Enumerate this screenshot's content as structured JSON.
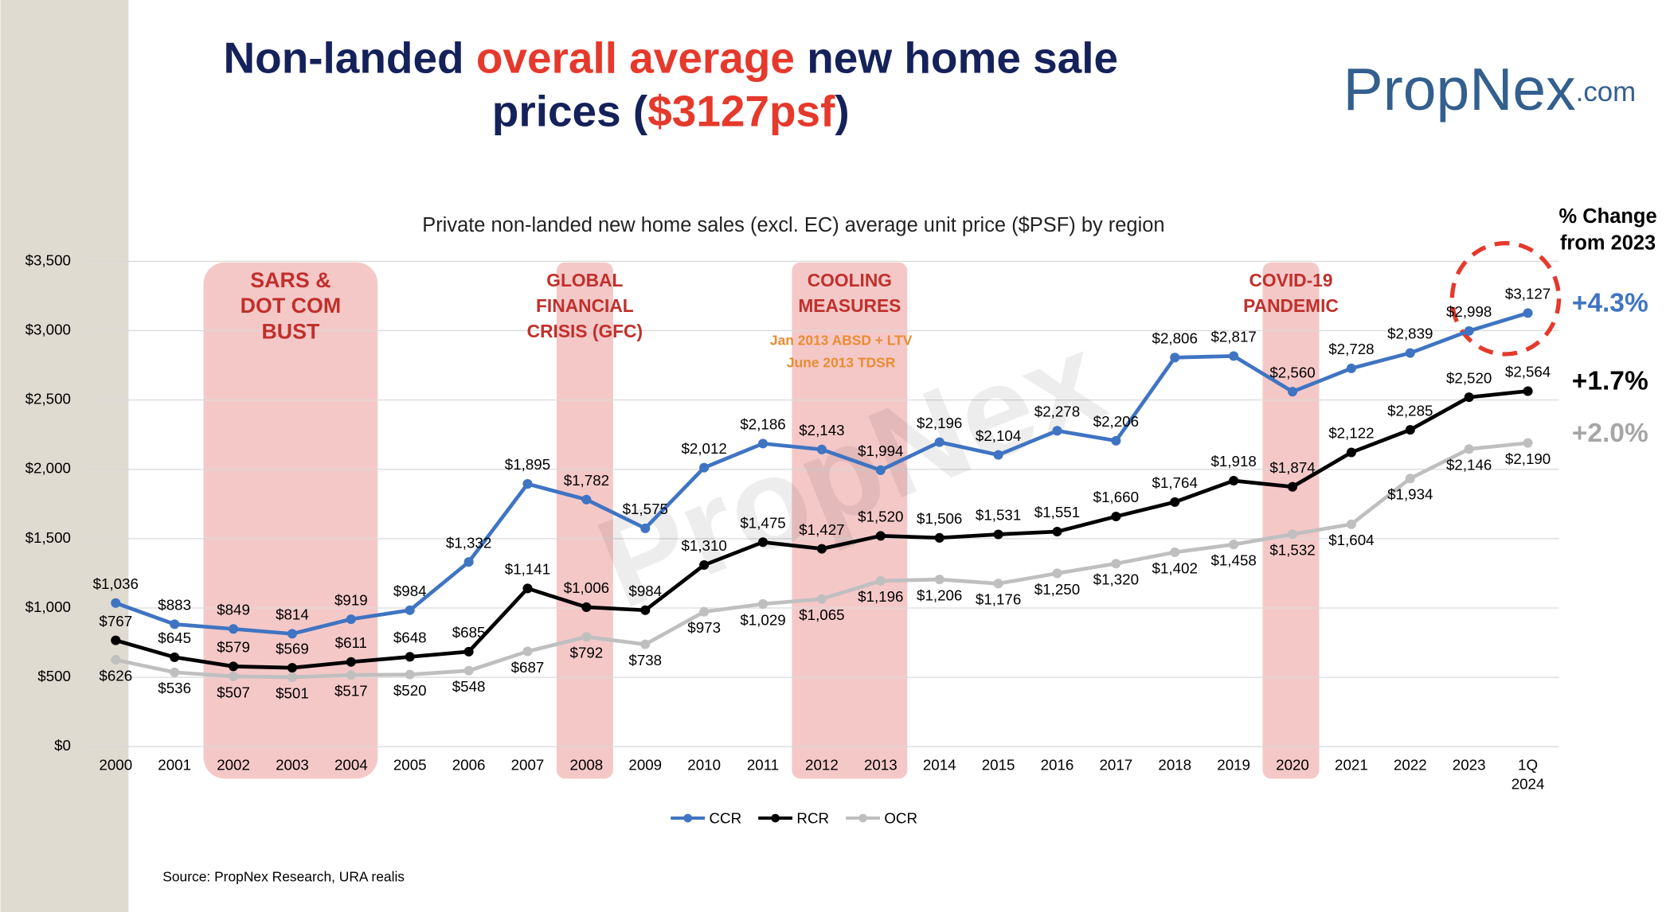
{
  "chart_data": {
    "type": "line",
    "title": [
      [
        "Non-landed ",
        "overall average",
        " new home sale"
      ],
      [
        "prices (",
        "$3127psf",
        ")"
      ]
    ],
    "title_colors": [
      "#15215a",
      "#e5392c",
      "#15215a"
    ],
    "logo": [
      "PropNex",
      ".com"
    ],
    "watermark": "PropNex",
    "subtitle": "Private non-landed new home sales (excl. EC) average unit price ($PSF) by region",
    "source": "Source: PropNex Research, URA realis",
    "change_heading": [
      "% Change",
      "from 2023"
    ],
    "categories": [
      "2000",
      "2001",
      "2002",
      "2003",
      "2004",
      "2005",
      "2006",
      "2007",
      "2008",
      "2009",
      "2010",
      "2011",
      "2012",
      "2013",
      "2014",
      "2015",
      "2016",
      "2017",
      "2018",
      "2019",
      "2020",
      "2021",
      "2022",
      "2023",
      "1Q 2024"
    ],
    "ylim": [
      0,
      3500
    ],
    "yticks": [
      {
        "value": 0,
        "label": "$0"
      },
      {
        "value": 500,
        "label": "$500"
      },
      {
        "value": 1000,
        "label": "$1,000"
      },
      {
        "value": 1500,
        "label": "$1,500"
      },
      {
        "value": 2000,
        "label": "$2,000"
      },
      {
        "value": 2500,
        "label": "$2,500"
      },
      {
        "value": 3000,
        "label": "$3,000"
      },
      {
        "value": 3500,
        "label": "$3,500"
      }
    ],
    "grid": true,
    "legend": "bottom",
    "bands": [
      {
        "from": "2002",
        "to": "2004",
        "label": [
          "SARS &",
          "DOT COM",
          "BUST"
        ]
      },
      {
        "from": "2008",
        "to": "2008",
        "label": [
          "GLOBAL",
          "FINANCIAL",
          "CRISIS (GFC)"
        ]
      },
      {
        "from": "2012",
        "to": "2013",
        "label": [
          "COOLING",
          "MEASURES"
        ],
        "note": [
          "Jan 2013 ABSD + LTV",
          "June 2013 TDSR"
        ]
      },
      {
        "from": "2020",
        "to": "2020",
        "label": [
          "COVID-19",
          "PANDEMIC"
        ]
      }
    ],
    "series": [
      {
        "name": "CCR",
        "color": "#3f74c2",
        "change_label": "+4.3%",
        "change_color": "#3f74c2",
        "values": [
          1036,
          883,
          849,
          814,
          919,
          984,
          1332,
          1895,
          1782,
          1575,
          2012,
          2186,
          2143,
          1994,
          2196,
          2104,
          2278,
          2206,
          2806,
          2817,
          2560,
          2728,
          2839,
          2998,
          3127
        ],
        "value_labels": [
          "$1,036",
          "$883",
          "$849",
          "$814",
          "$919",
          "$984",
          "$1,332",
          "$1,895",
          "$1,782",
          "$1,575",
          "$2,012",
          "$2,186",
          "$2,143",
          "$1,994",
          "$2,196",
          "$2,104",
          "$2,278",
          "$2,206",
          "$2,806",
          "$2,817",
          "$2,560",
          "$2,728",
          "$2,839",
          "$2,998",
          "$3,127"
        ]
      },
      {
        "name": "RCR",
        "color": "#000000",
        "change_label": "+1.7%",
        "change_color": "#000000",
        "values": [
          767,
          645,
          579,
          569,
          611,
          648,
          685,
          1141,
          1006,
          984,
          1310,
          1475,
          1427,
          1520,
          1506,
          1531,
          1551,
          1660,
          1764,
          1918,
          1874,
          2122,
          2285,
          2520,
          2564
        ],
        "value_labels": [
          "$767",
          "$645",
          "$579",
          "$569",
          "$611",
          "$648",
          "$685",
          "$1,141",
          "$1,006",
          "$984",
          "$1,310",
          "$1,475",
          "$1,427",
          "$1,520",
          "$1,506",
          "$1,531",
          "$1,551",
          "$1,660",
          "$1,764",
          "$1,918",
          "$1,874",
          "$2,122",
          "$2,285",
          "$2,520",
          "$2,564"
        ]
      },
      {
        "name": "OCR",
        "color": "#bfbfbf",
        "change_label": "+2.0%",
        "change_color": "#a6a6a6",
        "values": [
          626,
          536,
          507,
          501,
          517,
          520,
          548,
          687,
          792,
          738,
          973,
          1029,
          1065,
          1196,
          1206,
          1176,
          1250,
          1320,
          1402,
          1458,
          1532,
          1604,
          1934,
          2146,
          2190
        ],
        "value_labels": [
          "$626",
          "$536",
          "$507",
          "$501",
          "$517",
          "$520",
          "$548",
          "$687",
          "$792",
          "$738",
          "$973",
          "$1,029",
          "$1,065",
          "$1,196",
          "$1,206",
          "$1,176",
          "$1,250",
          "$1,320",
          "$1,402",
          "$1,458",
          "$1,532",
          "$1,604",
          "$1,934",
          "$2,146",
          "$2,190"
        ]
      }
    ]
  }
}
